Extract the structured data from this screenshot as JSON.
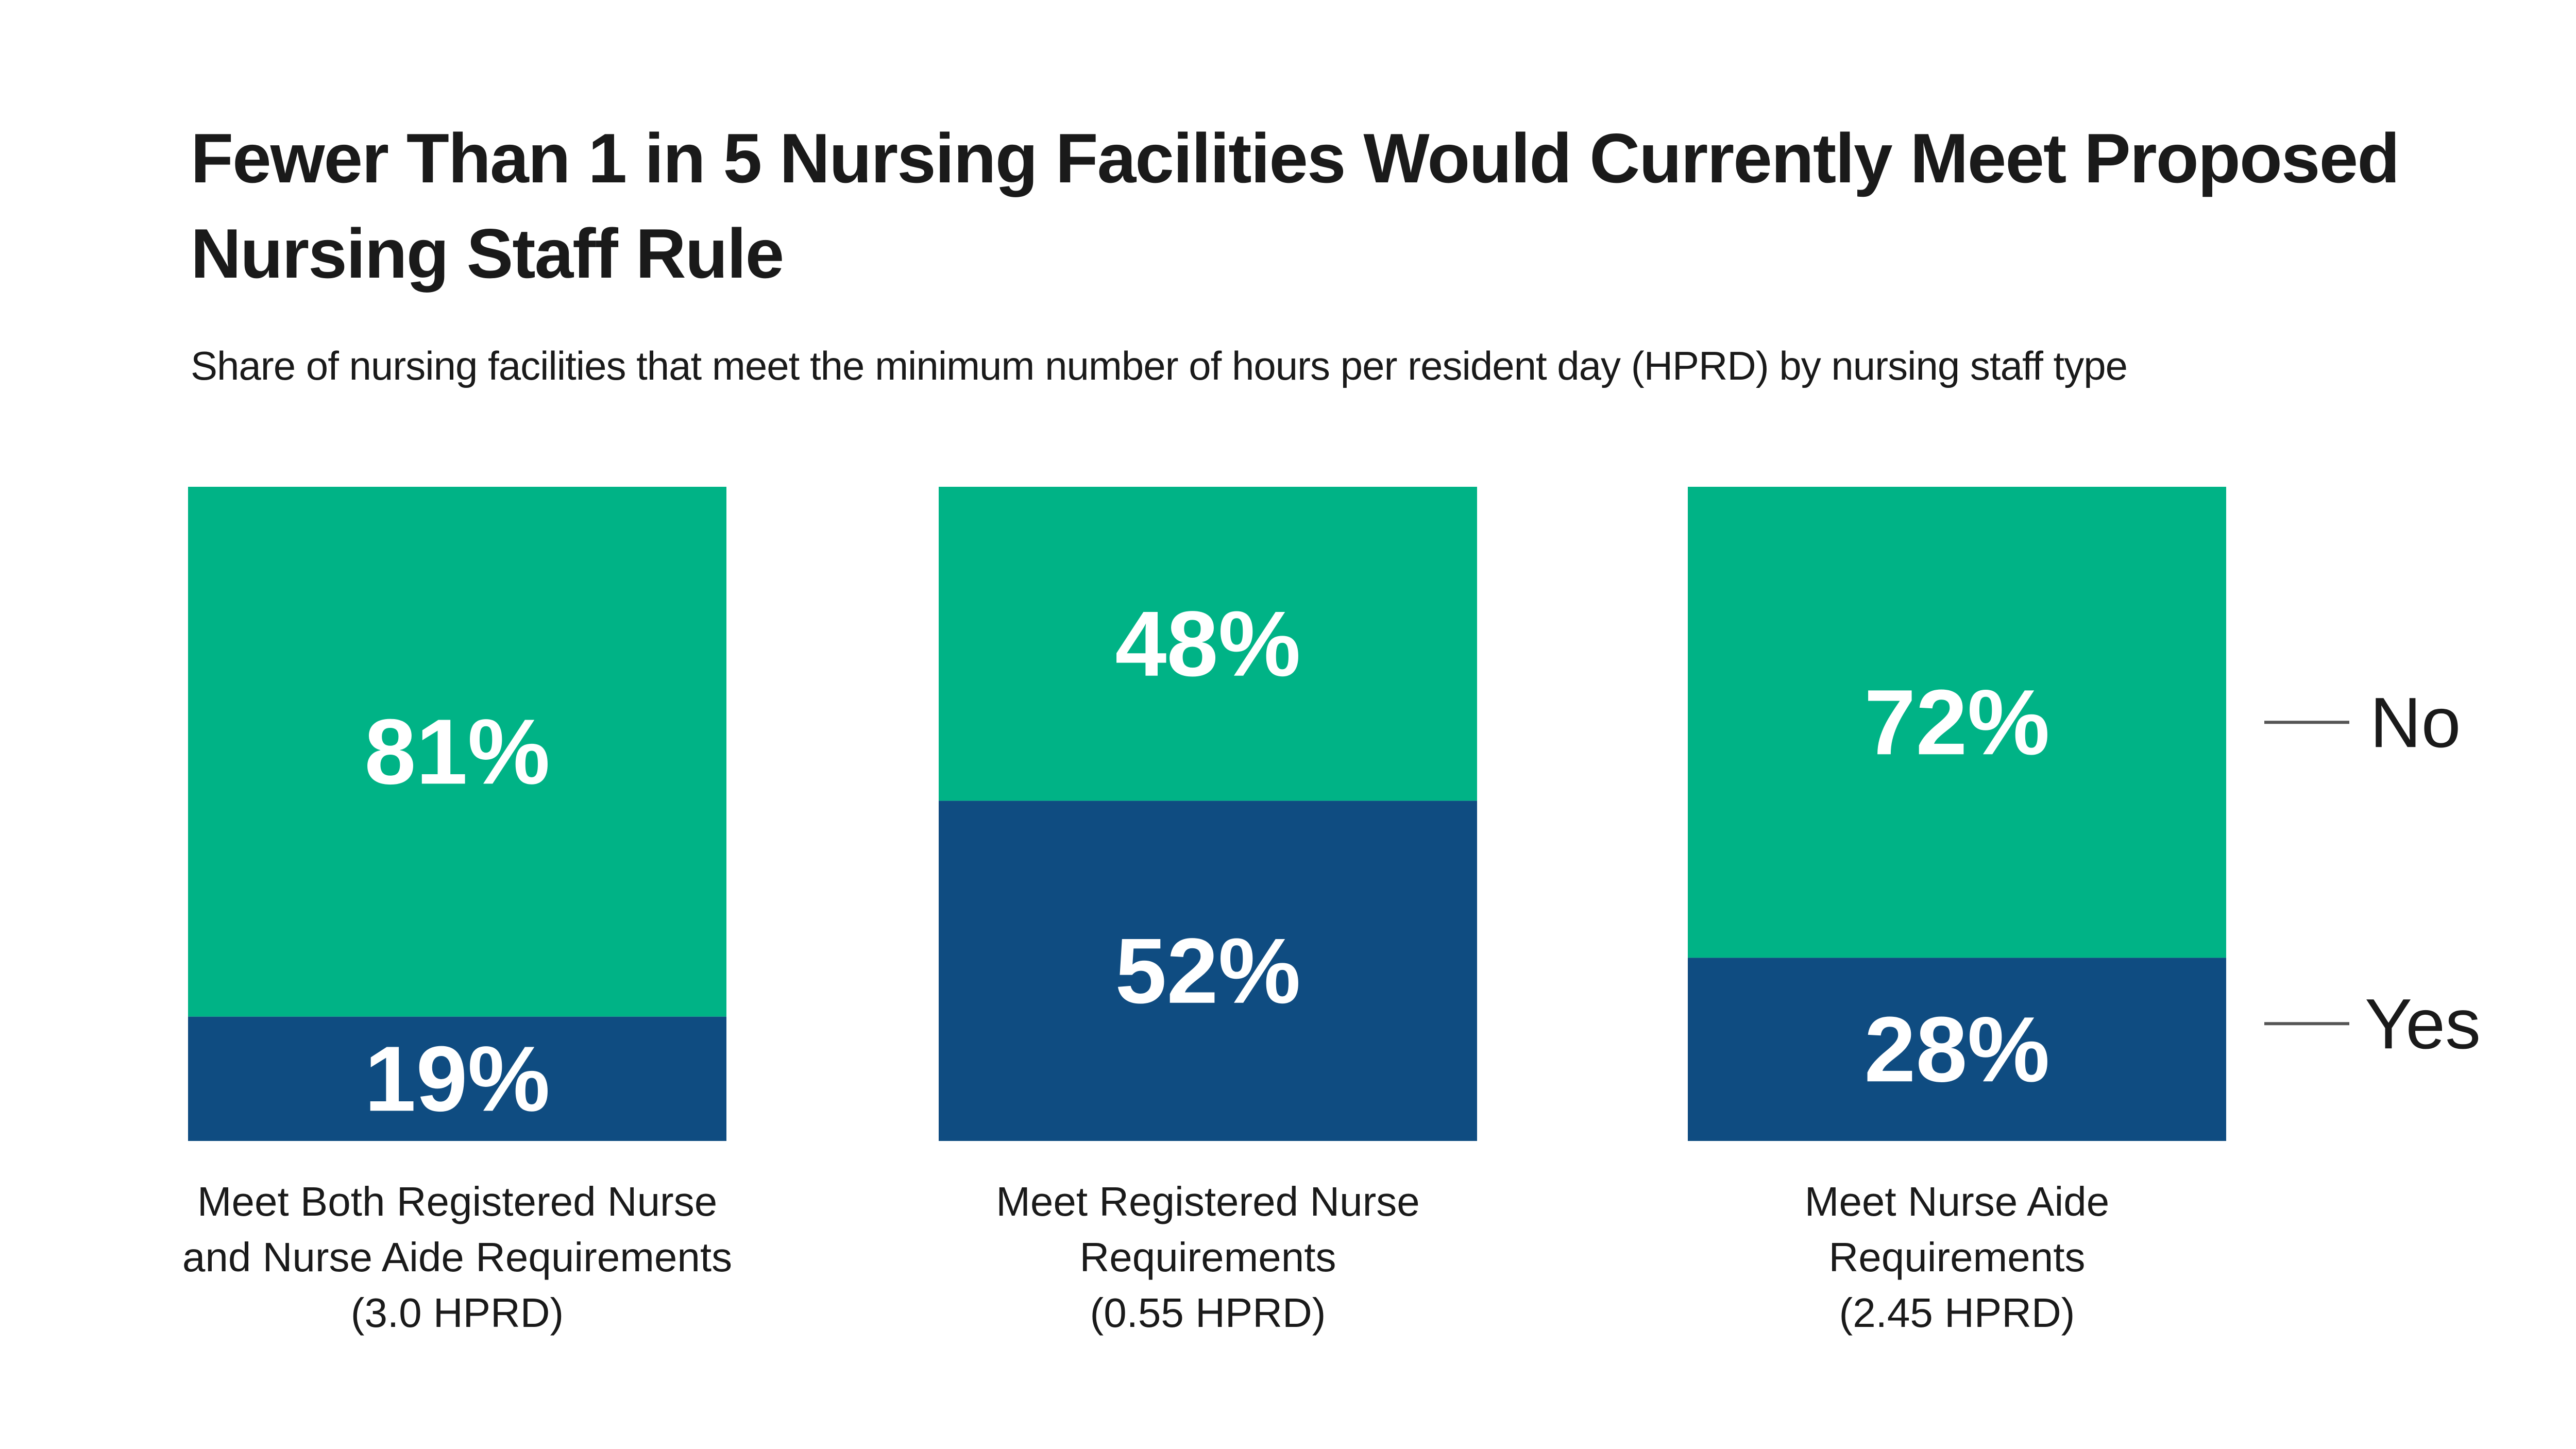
{
  "chart_data": {
    "type": "bar",
    "stacked": true,
    "title": "Fewer Than 1 in 5 Nursing Facilities Would Currently Meet Proposed Nursing Staff Rule",
    "subtitle": "Share of nursing facilities that meet the minimum number of hours per resident day (HPRD) by nursing staff type",
    "categories": [
      [
        "Meet Both Registered Nurse",
        "and Nurse Aide Requirements",
        "(3.0 HPRD)"
      ],
      [
        "Meet Registered Nurse",
        "Requirements",
        "(0.55 HPRD)"
      ],
      [
        "Meet Nurse Aide",
        "Requirements",
        "(2.45 HPRD)"
      ]
    ],
    "series": [
      {
        "name": "Yes",
        "values": [
          19,
          52,
          28
        ],
        "labels": [
          "19%",
          "52%",
          "28%"
        ],
        "color": "#0f4c81"
      },
      {
        "name": "No",
        "values": [
          81,
          48,
          72
        ],
        "labels": [
          "81%",
          "48%",
          "72%"
        ],
        "color": "#00b386"
      }
    ],
    "ylim": [
      0,
      100
    ],
    "grid": false,
    "legend": "right"
  }
}
